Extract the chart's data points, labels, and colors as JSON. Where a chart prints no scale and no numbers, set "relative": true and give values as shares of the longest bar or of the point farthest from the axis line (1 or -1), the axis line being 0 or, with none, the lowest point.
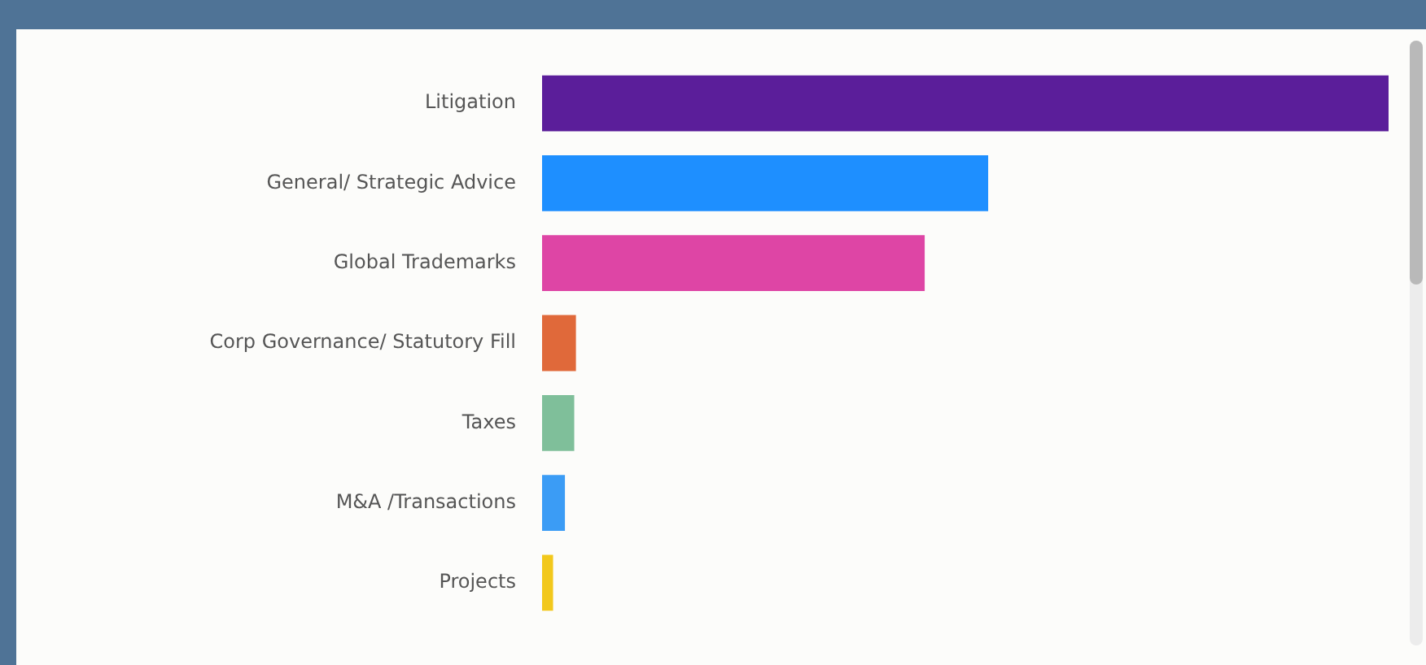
{
  "chart_data": {
    "type": "bar",
    "orientation": "horizontal",
    "relative": true,
    "categories": [
      "Litigation",
      "General/ Strategic Advice",
      "Global Trademarks",
      "Corp Governance/ Statutory Fill",
      "Taxes",
      "M&A /Transactions",
      "Projects"
    ],
    "values": [
      1,
      0.527,
      0.452,
      0.04,
      0.038,
      0.027,
      0.013
    ],
    "colors": [
      "#5b1e9a",
      "#1e8fff",
      "#de45a5",
      "#e0693a",
      "#7fbf9a",
      "#3b9cf5",
      "#f2c81b"
    ],
    "legend": false
  }
}
